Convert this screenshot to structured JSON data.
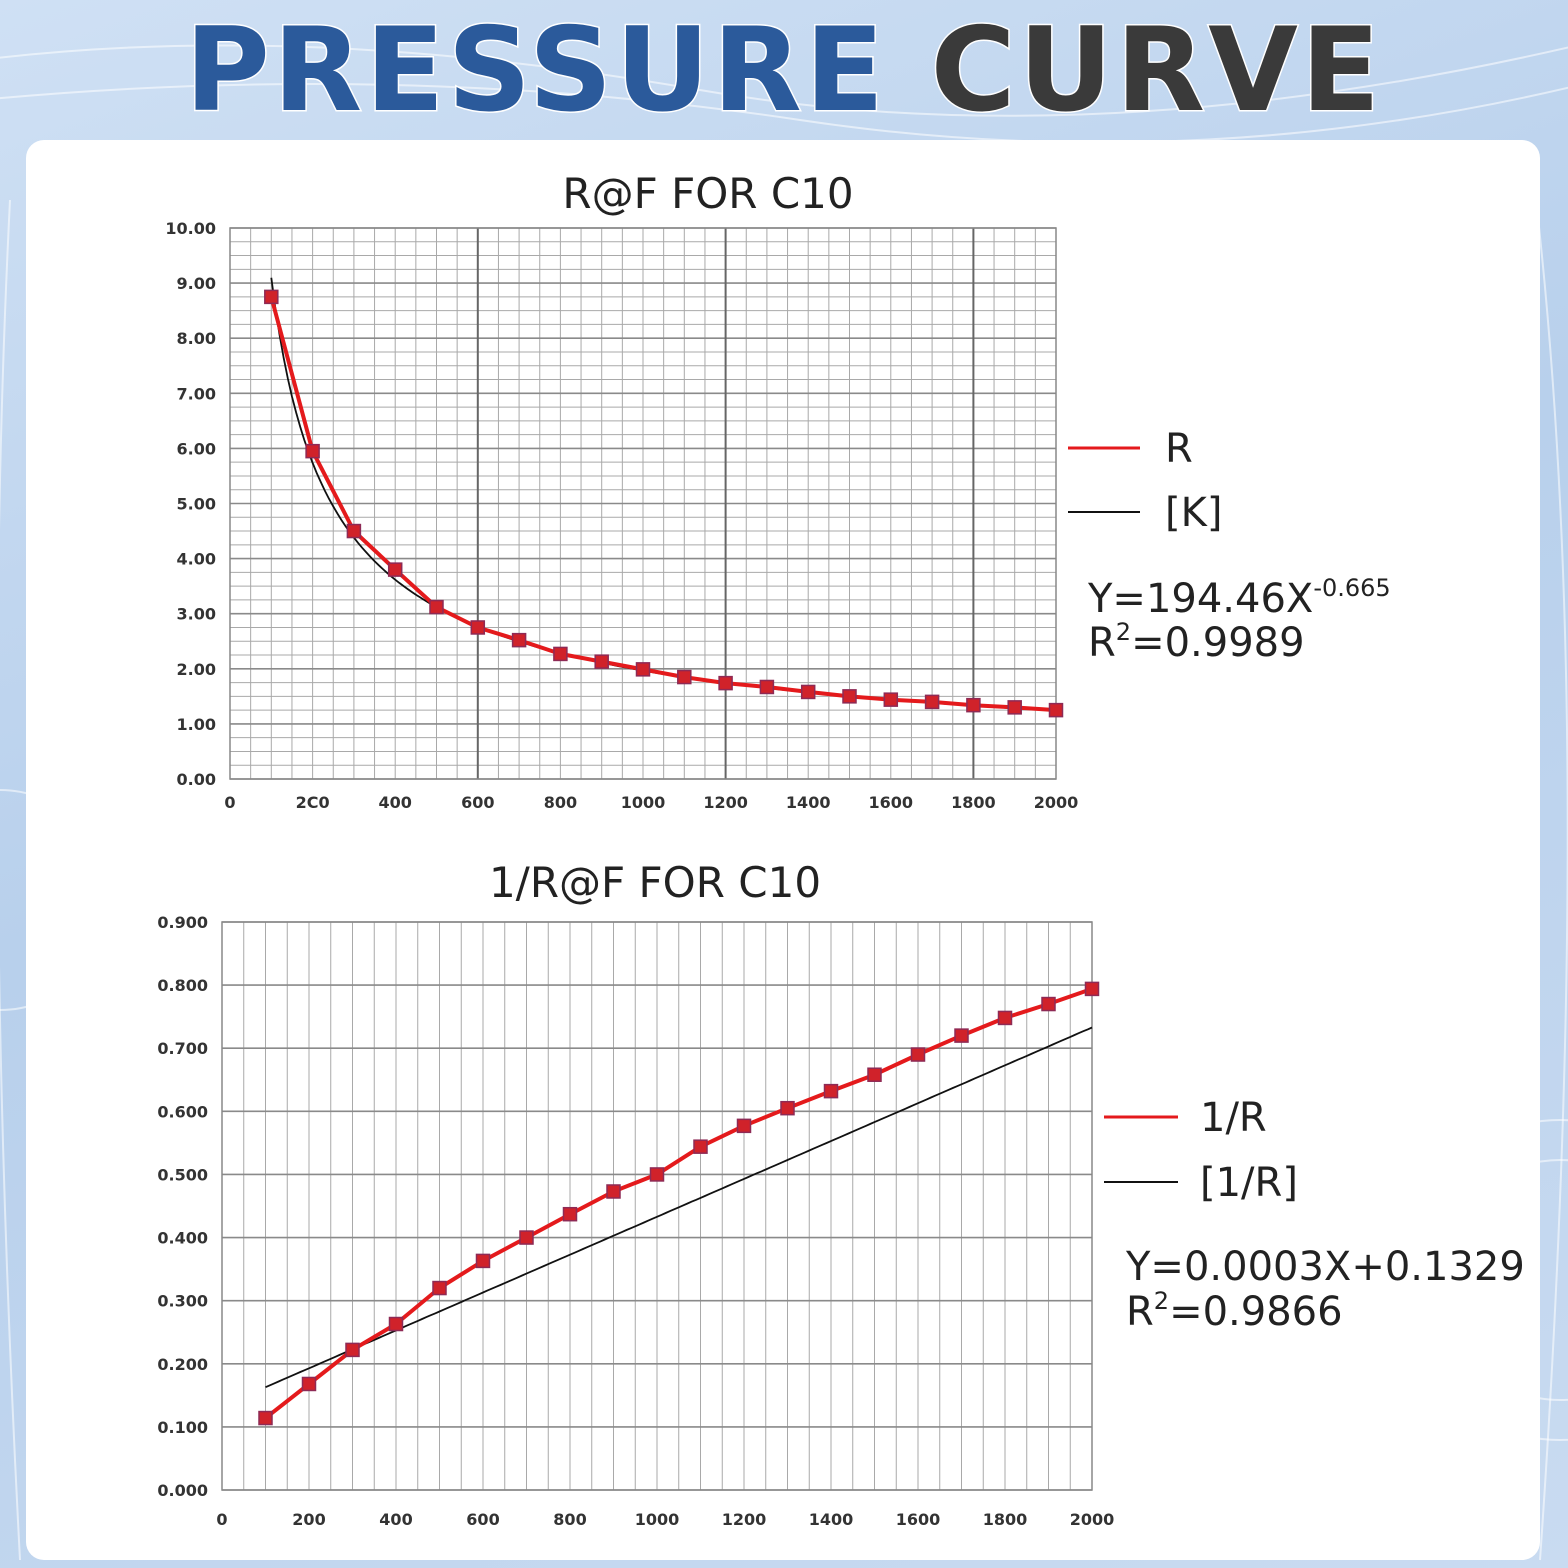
{
  "header": {
    "title_part1": "PRESSURE",
    "title_part2": "CURVE"
  },
  "colors": {
    "series": "#e41a1c",
    "marker": "#d0222a",
    "marker_edge": "#8e2a55",
    "fit": "#111111",
    "grid": "#a9a9a9",
    "title_blue": "#2b5a9b",
    "title_dark": "#3a3a3a"
  },
  "chart_data": [
    {
      "type": "line",
      "title": "R@F FOR C10",
      "xlabel": "",
      "ylabel": "",
      "xlim": [
        0,
        2000
      ],
      "ylim": [
        0,
        10
      ],
      "x_ticks": [
        "0",
        "2C0",
        "400",
        "600",
        "800",
        "1000",
        "1200",
        "1400",
        "1600",
        "1800",
        "2000"
      ],
      "y_ticks": [
        "0.00",
        "1.00",
        "2.00",
        "3.00",
        "4.00",
        "5.00",
        "6.00",
        "7.00",
        "8.00",
        "9.00",
        "10.00"
      ],
      "grid": true,
      "legend_position": "right",
      "series": [
        {
          "name": "R",
          "x": [
            100,
            200,
            300,
            400,
            500,
            600,
            700,
            800,
            900,
            1000,
            1100,
            1200,
            1300,
            1400,
            1500,
            1600,
            1700,
            1800,
            1900,
            2000
          ],
          "values": [
            8.75,
            5.95,
            4.5,
            3.8,
            3.12,
            2.75,
            2.52,
            2.27,
            2.13,
            1.99,
            1.85,
            1.74,
            1.67,
            1.58,
            1.5,
            1.44,
            1.4,
            1.34,
            1.3,
            1.25
          ]
        },
        {
          "name": "[K]",
          "fit": "power",
          "a": 194.46,
          "b": -0.665,
          "x_range": [
            100,
            2000
          ]
        }
      ],
      "annotations": [
        {
          "eq_base": "Y=194.46X",
          "eq_exp": "-0.665",
          "r2_label": "R",
          "r2_exp": "2",
          "r2_value": "=0.9989"
        }
      ]
    },
    {
      "type": "line",
      "title": "1/R@F FOR C10",
      "xlabel": "",
      "ylabel": "",
      "xlim": [
        0,
        2000
      ],
      "ylim": [
        0,
        0.9
      ],
      "x_ticks": [
        "0",
        "200",
        "400",
        "600",
        "800",
        "1000",
        "1200",
        "1400",
        "1600",
        "1800",
        "2000"
      ],
      "y_ticks": [
        "0.000",
        "0.100",
        "0.200",
        "0.300",
        "0.400",
        "0.500",
        "0.600",
        "0.700",
        "0.800",
        "0.900"
      ],
      "grid": true,
      "legend_position": "right",
      "series": [
        {
          "name": "1/R",
          "x": [
            100,
            200,
            300,
            400,
            500,
            600,
            700,
            800,
            900,
            1000,
            1100,
            1200,
            1300,
            1400,
            1500,
            1600,
            1700,
            1800,
            1900,
            2000
          ],
          "values": [
            0.114,
            0.168,
            0.222,
            0.263,
            0.32,
            0.363,
            0.4,
            0.437,
            0.473,
            0.5,
            0.544,
            0.577,
            0.605,
            0.632,
            0.658,
            0.69,
            0.72,
            0.748,
            0.77,
            0.794
          ]
        },
        {
          "name": "[1/R]",
          "fit": "linear",
          "slope": 0.0003,
          "intercept": 0.1329,
          "x_range": [
            100,
            2000
          ]
        }
      ],
      "annotations": [
        {
          "eq_base": "Y=0.0003X+0.1329",
          "eq_exp": "",
          "r2_label": "R",
          "r2_exp": "2",
          "r2_value": "=0.9866"
        }
      ]
    }
  ]
}
